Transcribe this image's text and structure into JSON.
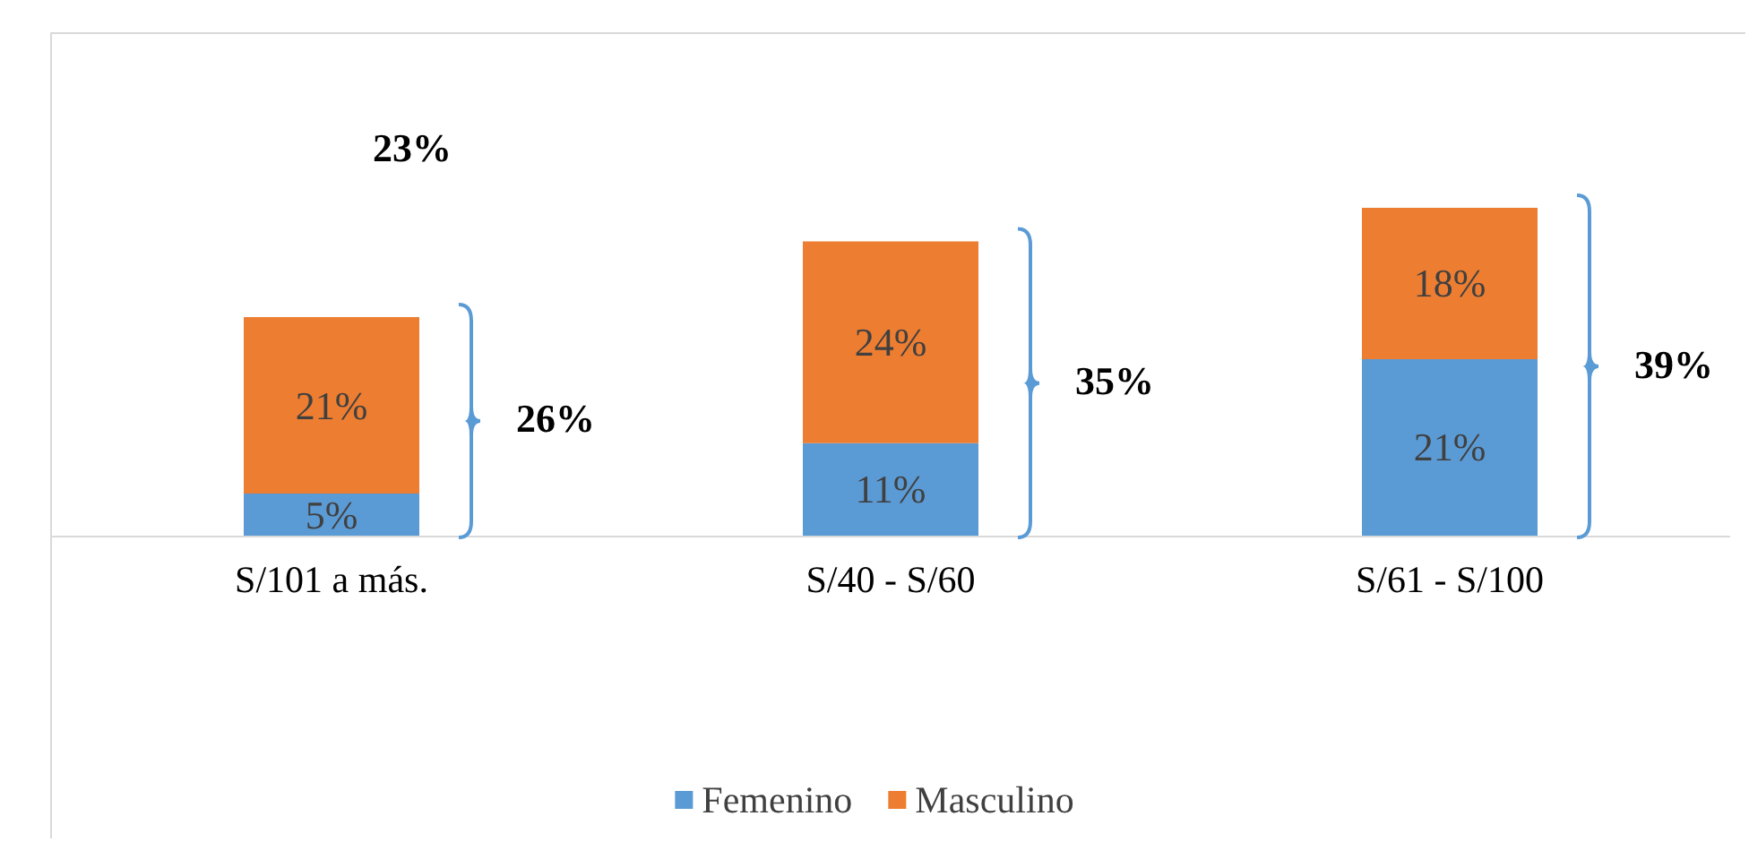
{
  "chart_data": {
    "type": "bar",
    "stacked": true,
    "categories": [
      "S/101 a más.",
      "S/40 - S/60",
      "S/61 - S/100"
    ],
    "series": [
      {
        "name": "Femenino",
        "color": "#5b9bd5",
        "values": [
          5,
          11,
          21
        ],
        "value_labels": [
          "5%",
          "11%",
          "21%"
        ]
      },
      {
        "name": "Masculino",
        "color": "#ed7d31",
        "values": [
          21,
          24,
          18
        ],
        "value_labels": [
          "21%",
          "24%",
          "18%"
        ]
      }
    ],
    "totals": [
      "26%",
      "35%",
      "39%"
    ],
    "annotations": [
      "23%"
    ],
    "legend": "bottom"
  }
}
